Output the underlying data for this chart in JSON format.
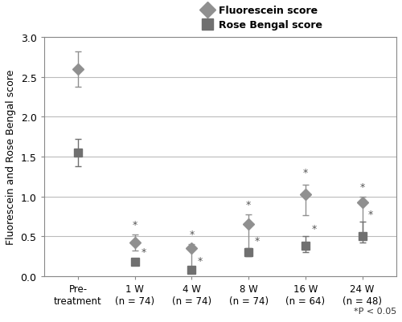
{
  "ylabel": "Fluorescein and Rose Bengal score",
  "x_labels": [
    "Pre-\ntreatment",
    "1 W\n(n = 74)",
    "4 W\n(n = 74)",
    "8 W\n(n = 74)",
    "16 W\n(n = 64)",
    "24 W\n(n = 48)"
  ],
  "x_positions": [
    0,
    1,
    2,
    3,
    4,
    5
  ],
  "fluorescein_mean": [
    2.6,
    0.42,
    0.35,
    0.65,
    1.03,
    0.93
  ],
  "fluorescein_err_low": [
    0.22,
    0.1,
    0.28,
    0.35,
    0.27,
    0.42
  ],
  "fluorescein_err_high": [
    0.22,
    0.1,
    0.05,
    0.12,
    0.12,
    0.07
  ],
  "rose_bengal_mean": [
    1.55,
    0.18,
    0.08,
    0.3,
    0.38,
    0.5
  ],
  "rose_bengal_err_low": [
    0.17,
    0.03,
    0.03,
    0.05,
    0.08,
    0.08
  ],
  "rose_bengal_err_high": [
    0.17,
    0.03,
    0.02,
    0.05,
    0.12,
    0.18
  ],
  "fluorescein_color": "#909090",
  "rose_bengal_color": "#707070",
  "line_color_fluor": "#aaaaaa",
  "line_color_rose": "#909090",
  "background_color": "#ffffff",
  "ylim": [
    0,
    3
  ],
  "yticks": [
    0,
    0.5,
    1.0,
    1.5,
    2.0,
    2.5,
    3.0
  ],
  "grid_color": "#bbbbbb",
  "footnote": "*P < 0.05",
  "star_fluor_x": [
    1,
    2,
    3,
    4,
    5
  ],
  "star_rose_x": [
    1,
    2,
    3,
    4,
    5
  ],
  "legend_label_fluor": "Fluorescein score",
  "legend_label_rose": "Rose Bengal score"
}
